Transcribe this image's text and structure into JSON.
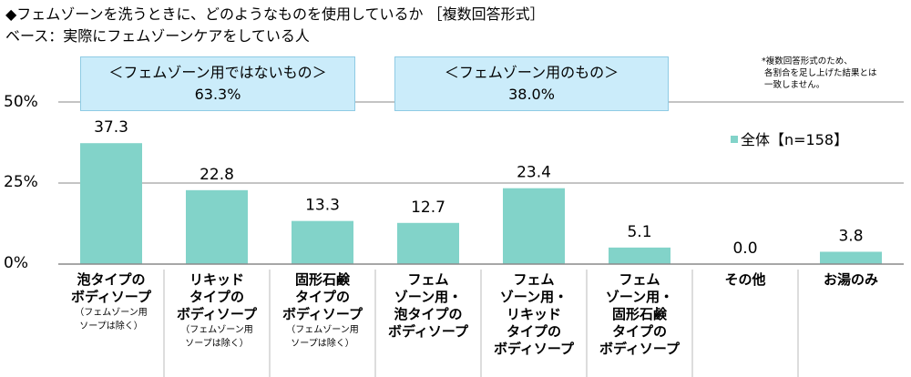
{
  "header": {
    "title": "◆フェムゾーンを洗うときに、どのようなものを使用しているか ［複数回答形式］",
    "subtitle": "ベース：実際にフェムゾーンケアをしている人"
  },
  "note": "*複数回答形式のため、\n 各割合を足し上げた結果とは\n 一致しません。",
  "groups": [
    {
      "label": "＜フェムゾーン用ではないもの＞",
      "value": "63.3%"
    },
    {
      "label": "＜フェムゾーン用のもの＞",
      "value": "38.0%"
    }
  ],
  "chart_data": {
    "type": "bar",
    "categories": [
      "泡タイプのボディソープ",
      "リキッドタイプのボディソープ",
      "固形石鹸タイプのボディソープ",
      "フェムゾーン用・泡タイプのボディソープ",
      "フェムゾーン用・リキッドタイプのボディソープ",
      "フェムゾーン用・固形石鹸タイプのボディソープ",
      "その他",
      "お湯のみ"
    ],
    "category_lines": [
      [
        "泡タイプの",
        "ボディソープ"
      ],
      [
        "リキッド",
        "タイプの",
        "ボディソープ"
      ],
      [
        "固形石鹸",
        "タイプの",
        "ボディソープ"
      ],
      [
        "フェム",
        "ゾーン用・",
        "泡タイプの",
        "ボディソープ"
      ],
      [
        "フェム",
        "ゾーン用・",
        "リキッド",
        "タイプの",
        "ボディソープ"
      ],
      [
        "フェム",
        "ゾーン用・",
        "固形石鹸",
        "タイプの",
        "ボディソープ"
      ],
      [
        "その他"
      ],
      [
        "お湯のみ"
      ]
    ],
    "category_notes": [
      "（フェムゾーン用\nソープは除く）",
      "（フェムゾーン用\nソープは除く）",
      "（フェムゾーン用\nソープは除く）",
      "",
      "",
      "",
      "",
      ""
    ],
    "series": [
      {
        "name": "全体【n=158】",
        "values": [
          37.3,
          22.8,
          13.3,
          12.7,
          23.4,
          5.1,
          0.0,
          3.8
        ]
      }
    ],
    "data_labels": [
      "37.3",
      "22.8",
      "13.3",
      "12.7",
      "23.4",
      "5.1",
      "0.0",
      "3.8"
    ],
    "yticks": [
      "0%",
      "25%",
      "50%"
    ],
    "ylim": [
      0,
      50
    ],
    "grid": true,
    "legend_position": "top-right",
    "bar_color": "#82d3c9"
  }
}
